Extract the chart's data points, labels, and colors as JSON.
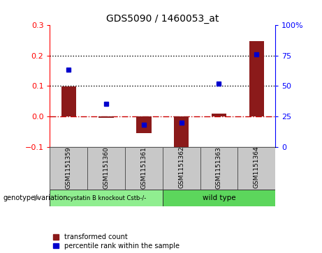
{
  "title": "GDS5090 / 1460053_at",
  "samples": [
    "GSM1151359",
    "GSM1151360",
    "GSM1151361",
    "GSM1151362",
    "GSM1151363",
    "GSM1151364"
  ],
  "transformed_count": [
    0.098,
    -0.005,
    -0.055,
    -0.112,
    0.008,
    0.248
  ],
  "percentile_rank_pct": [
    63.5,
    35.5,
    18.0,
    20.0,
    52.0,
    76.0
  ],
  "ylim_left": [
    -0.1,
    0.3
  ],
  "ylim_right": [
    0,
    100
  ],
  "bar_color": "#8B1A1A",
  "dot_color": "#0000CD",
  "hline_y": [
    0.1,
    0.2
  ],
  "hline_color": "black",
  "zero_line_color": "#CC0000",
  "genotype_labels": [
    "cystatin B knockout Cstb-/-",
    "wild type"
  ],
  "legend_red_label": "transformed count",
  "legend_blue_label": "percentile rank within the sample",
  "right_yticks": [
    0,
    25,
    50,
    75,
    100
  ],
  "right_yticklabels": [
    "0",
    "25",
    "50",
    "75",
    "100%"
  ],
  "left_yticks": [
    -0.1,
    0.0,
    0.1,
    0.2,
    0.3
  ]
}
